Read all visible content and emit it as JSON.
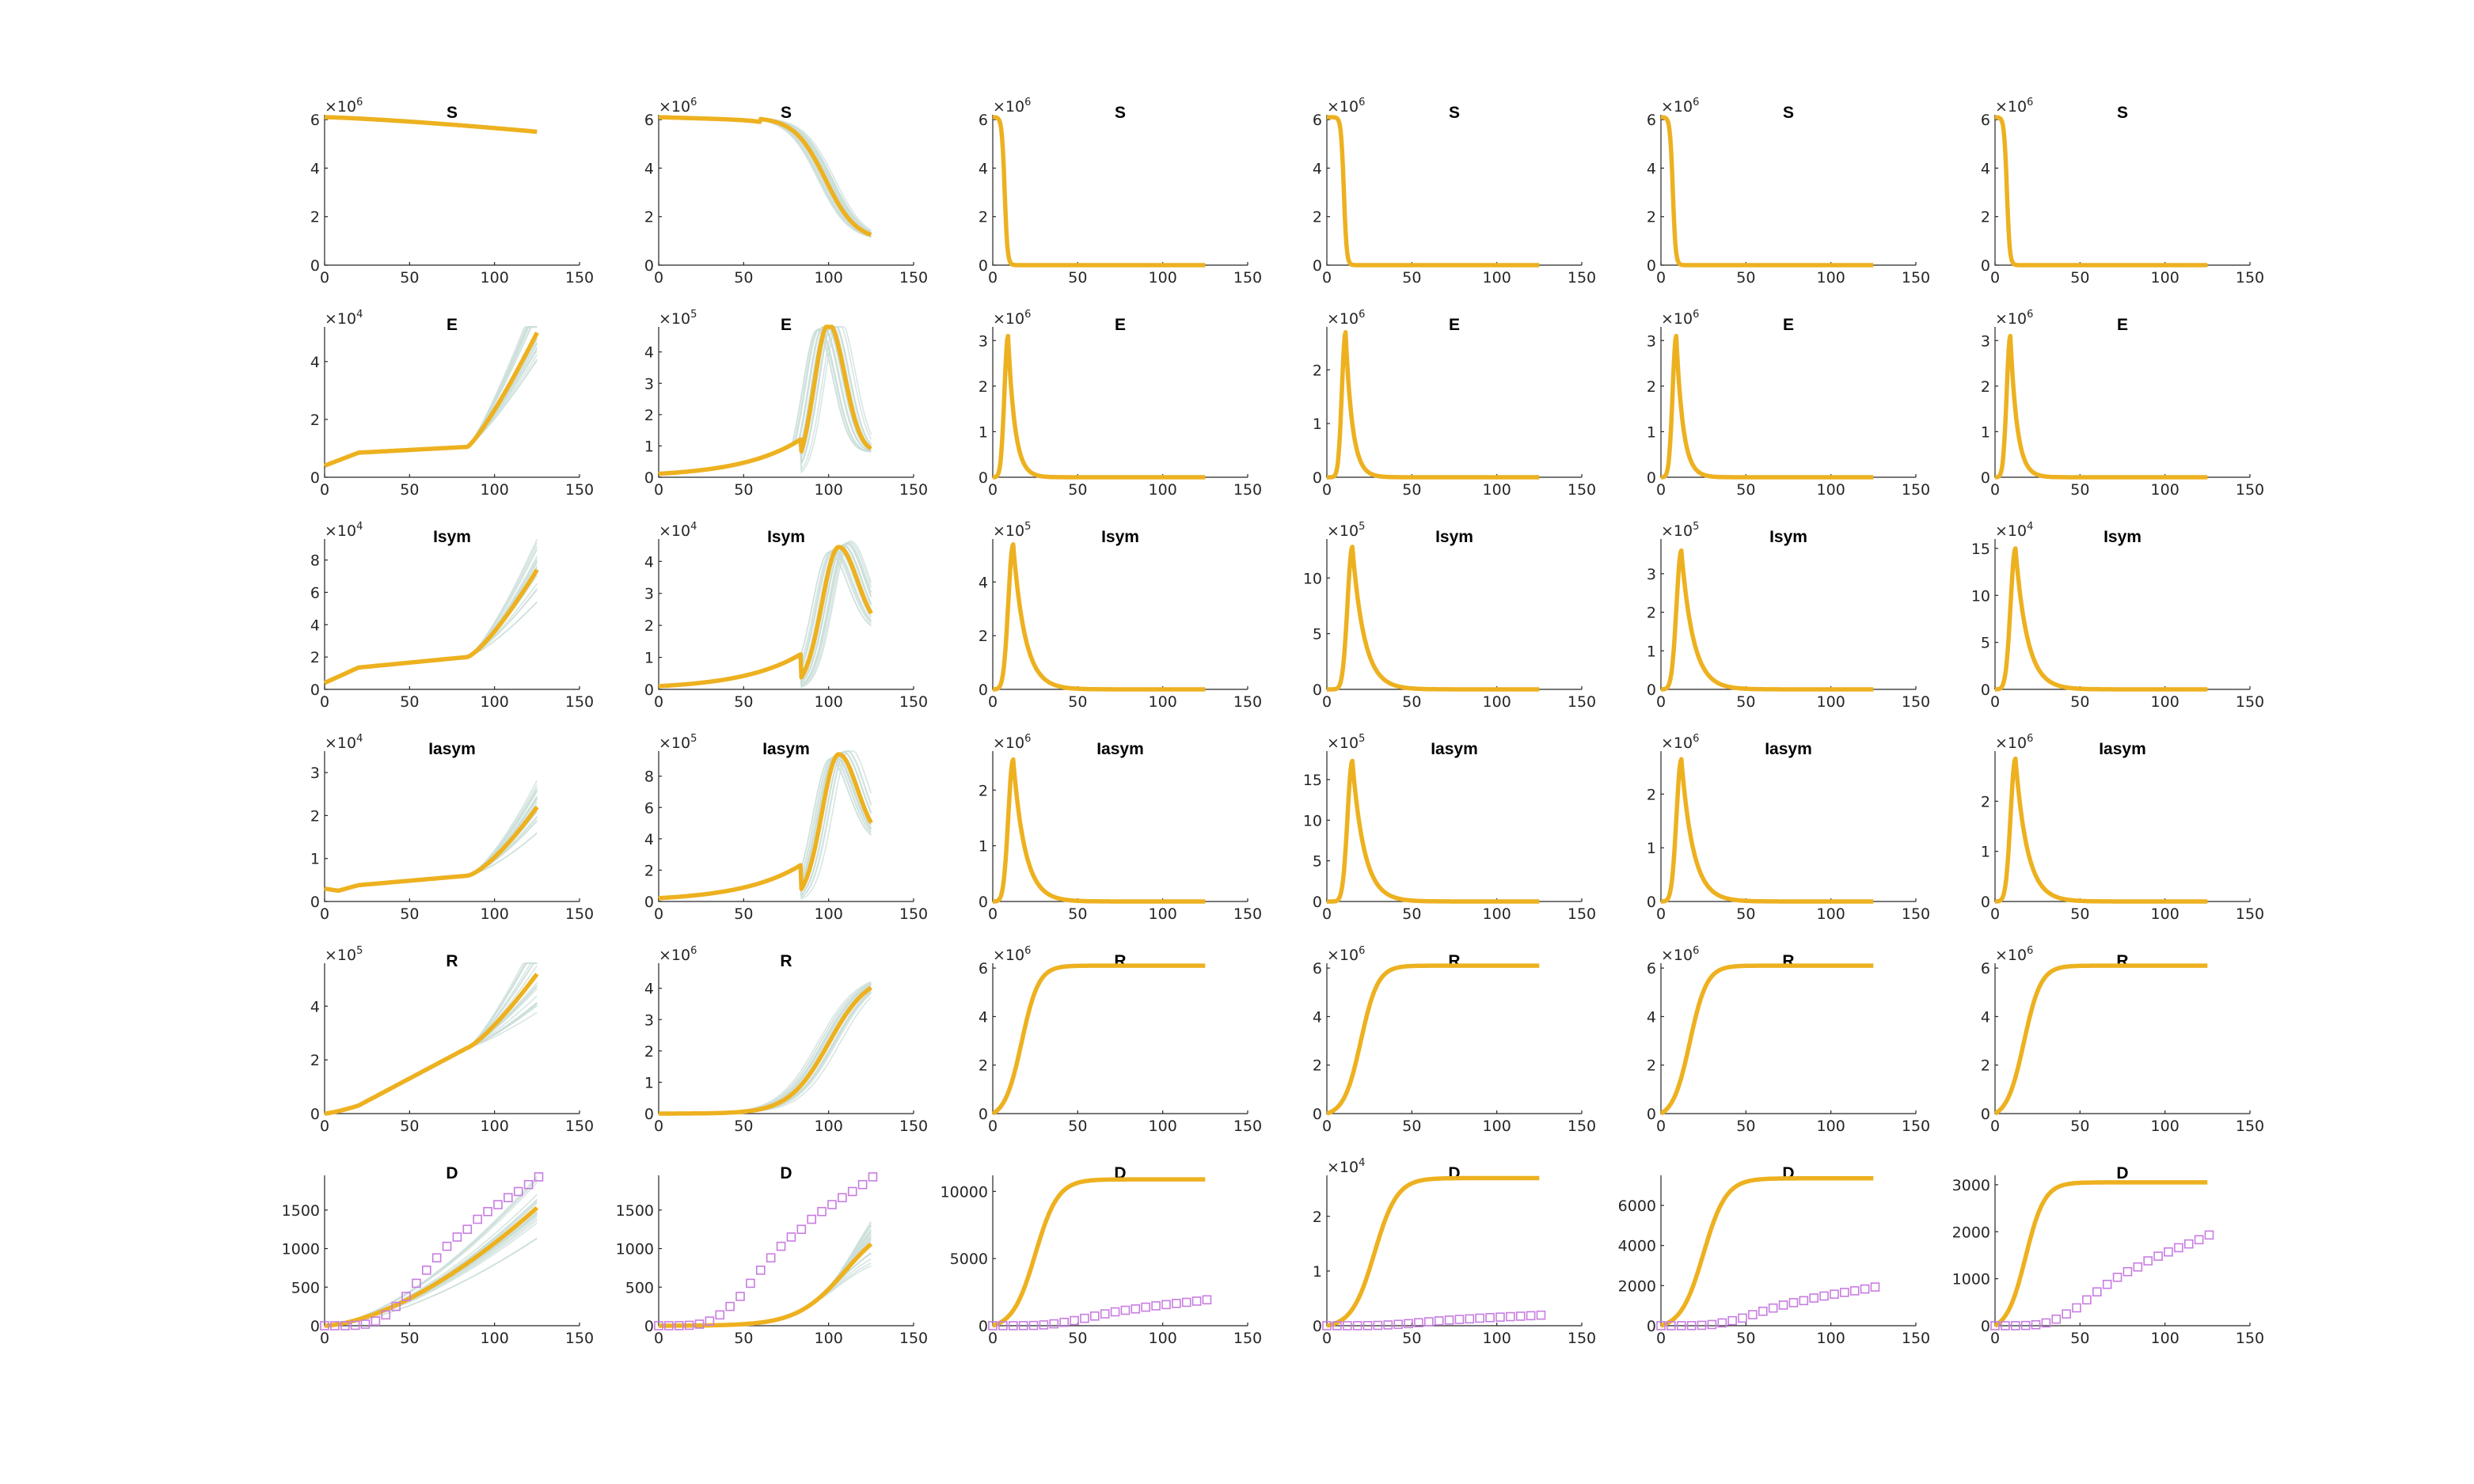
{
  "chart_data": {
    "type": "line",
    "layout": {
      "rows": 6,
      "cols": 6
    },
    "colors": {
      "main": "#EDB120",
      "ensemble": "#C9DED9",
      "observed": "#C77DE0",
      "axis": "#262626"
    },
    "xlim": [
      0,
      150
    ],
    "xticks": [
      0,
      50,
      100,
      150
    ],
    "variables": [
      {
        "key": "S",
        "title": "S"
      },
      {
        "key": "E",
        "title": "E"
      },
      {
        "key": "Isym",
        "title": "Isym"
      },
      {
        "key": "Iasym",
        "title": "Iasym"
      },
      {
        "key": "R",
        "title": "R"
      },
      {
        "key": "D",
        "title": "D"
      }
    ],
    "observed_deaths": {
      "x": [
        0,
        6,
        12,
        18,
        24,
        30,
        36,
        42,
        48,
        54,
        60,
        66,
        72,
        78,
        84,
        90,
        96,
        102,
        108,
        114,
        120,
        126
      ],
      "y": [
        0,
        0,
        0,
        5,
        20,
        60,
        140,
        250,
        380,
        550,
        720,
        880,
        1030,
        1150,
        1250,
        1380,
        1480,
        1570,
        1660,
        1740,
        1830,
        1930
      ]
    },
    "panels": [
      [
        {
          "exp": "6",
          "ylim": [
            0,
            6.2
          ],
          "yticks": [
            0,
            2,
            4,
            6
          ],
          "ytick_labels": [
            "0",
            "2",
            "4",
            "6"
          ],
          "shape": "s_slow",
          "peak": 6.1,
          "end": 5.5,
          "ens": 0
        },
        {
          "exp": "6",
          "ylim": [
            0,
            6.2
          ],
          "yticks": [
            0,
            2,
            4,
            6
          ],
          "ytick_labels": [
            "0",
            "2",
            "4",
            "6"
          ],
          "shape": "s_late",
          "peak": 6.1,
          "end": 1.0,
          "ens": 1
        },
        {
          "exp": "6",
          "ylim": [
            0,
            6.2
          ],
          "yticks": [
            0,
            2,
            4,
            6
          ],
          "ytick_labels": [
            "0",
            "2",
            "4",
            "6"
          ],
          "shape": "s_fast",
          "peak": 6.1,
          "center": 7,
          "ens": 0
        },
        {
          "exp": "6",
          "ylim": [
            0,
            6.2
          ],
          "yticks": [
            0,
            2,
            4,
            6
          ],
          "ytick_labels": [
            "0",
            "2",
            "4",
            "6"
          ],
          "shape": "s_fast",
          "peak": 6.1,
          "center": 10,
          "ens": 0
        },
        {
          "exp": "6",
          "ylim": [
            0,
            6.2
          ],
          "yticks": [
            0,
            2,
            4,
            6
          ],
          "ytick_labels": [
            "0",
            "2",
            "4",
            "6"
          ],
          "shape": "s_fast",
          "peak": 6.1,
          "center": 7,
          "ens": 0
        },
        {
          "exp": "6",
          "ylim": [
            0,
            6.2
          ],
          "yticks": [
            0,
            2,
            4,
            6
          ],
          "ytick_labels": [
            "0",
            "2",
            "4",
            "6"
          ],
          "shape": "s_fast",
          "peak": 6.1,
          "center": 7,
          "ens": 0
        }
      ],
      [
        {
          "exp": "4",
          "ylim": [
            0,
            5.2
          ],
          "yticks": [
            0,
            2,
            4
          ],
          "ytick_labels": [
            "0",
            "2",
            "4"
          ],
          "shape": "e_grow",
          "start": 0.4,
          "end": 5.0,
          "ens": 1
        },
        {
          "exp": "5",
          "ylim": [
            0,
            4.8
          ],
          "yticks": [
            0,
            1,
            2,
            3,
            4
          ],
          "ytick_labels": [
            "0",
            "1",
            "2",
            "3",
            "4"
          ],
          "shape": "late_peak",
          "peak": 4.9,
          "tpeak": 100,
          "end": 0.8,
          "width": 12,
          "ens": 1
        },
        {
          "exp": "6",
          "ylim": [
            0,
            3.3
          ],
          "yticks": [
            0,
            1,
            2,
            3
          ],
          "ytick_labels": [
            "0",
            "1",
            "2",
            "3"
          ],
          "shape": "spike",
          "peak": 3.1,
          "tpeak": 9,
          "rise": 3,
          "decay": 4,
          "ens": 0
        },
        {
          "exp": "6",
          "ylim": [
            0,
            2.8
          ],
          "yticks": [
            0,
            1,
            2
          ],
          "ytick_labels": [
            "0",
            "1",
            "2"
          ],
          "shape": "spike",
          "peak": 2.7,
          "tpeak": 11,
          "rise": 3,
          "decay": 4,
          "ens": 0
        },
        {
          "exp": "6",
          "ylim": [
            0,
            3.3
          ],
          "yticks": [
            0,
            1,
            2,
            3
          ],
          "ytick_labels": [
            "0",
            "1",
            "2",
            "3"
          ],
          "shape": "spike",
          "peak": 3.1,
          "tpeak": 9,
          "rise": 3,
          "decay": 4,
          "ens": 0
        },
        {
          "exp": "6",
          "ylim": [
            0,
            3.3
          ],
          "yticks": [
            0,
            1,
            2,
            3
          ],
          "ytick_labels": [
            "0",
            "1",
            "2",
            "3"
          ],
          "shape": "spike",
          "peak": 3.1,
          "tpeak": 9,
          "rise": 3,
          "decay": 4,
          "ens": 0
        }
      ],
      [
        {
          "exp": "4",
          "ylim": [
            0,
            9.3
          ],
          "yticks": [
            0,
            2,
            4,
            6,
            8
          ],
          "ytick_labels": [
            "0",
            "2",
            "4",
            "6",
            "8"
          ],
          "shape": "i_grow",
          "start": 0.4,
          "end": 7.4,
          "ens": 1
        },
        {
          "exp": "4",
          "ylim": [
            0,
            4.7
          ],
          "yticks": [
            0,
            1,
            2,
            3,
            4
          ],
          "ytick_labels": [
            "0",
            "1",
            "2",
            "3",
            "4"
          ],
          "shape": "late_peak",
          "peak": 4.45,
          "tpeak": 106,
          "end": 1.8,
          "width": 14,
          "ens": 1
        },
        {
          "exp": "5",
          "ylim": [
            0,
            5.6
          ],
          "yticks": [
            0,
            2,
            4
          ],
          "ytick_labels": [
            "0",
            "2",
            "4"
          ],
          "shape": "spike",
          "peak": 5.4,
          "tpeak": 12,
          "rise": 4,
          "decay": 7,
          "ens": 0
        },
        {
          "exp": "5",
          "ylim": [
            0,
            13.5
          ],
          "yticks": [
            0,
            5,
            10
          ],
          "ytick_labels": [
            "0",
            "5",
            "10"
          ],
          "shape": "spike",
          "peak": 12.8,
          "tpeak": 15,
          "rise": 4,
          "decay": 7,
          "ens": 0
        },
        {
          "exp": "5",
          "ylim": [
            0,
            3.9
          ],
          "yticks": [
            0,
            1,
            2,
            3
          ],
          "ytick_labels": [
            "0",
            "1",
            "2",
            "3"
          ],
          "shape": "spike",
          "peak": 3.6,
          "tpeak": 12,
          "rise": 4,
          "decay": 7,
          "ens": 0
        },
        {
          "exp": "4",
          "ylim": [
            0,
            16
          ],
          "yticks": [
            0,
            5,
            10,
            15
          ],
          "ytick_labels": [
            "0",
            "5",
            "10",
            "15"
          ],
          "shape": "spike",
          "peak": 15.0,
          "tpeak": 12,
          "rise": 4,
          "decay": 7,
          "ens": 0
        }
      ],
      [
        {
          "exp": "4",
          "ylim": [
            0,
            3.5
          ],
          "yticks": [
            0,
            1,
            2,
            3
          ],
          "ytick_labels": [
            "0",
            "1",
            "2",
            "3"
          ],
          "shape": "a_grow",
          "start": 0.3,
          "end": 2.2,
          "ens": 1
        },
        {
          "exp": "5",
          "ylim": [
            0,
            9.6
          ],
          "yticks": [
            0,
            2,
            4,
            6,
            8
          ],
          "ytick_labels": [
            "0",
            "2",
            "4",
            "6",
            "8"
          ],
          "shape": "late_peak",
          "peak": 9.4,
          "tpeak": 106,
          "end": 3.8,
          "width": 14,
          "ens": 1
        },
        {
          "exp": "6",
          "ylim": [
            0,
            2.7
          ],
          "yticks": [
            0,
            1,
            2
          ],
          "ytick_labels": [
            "0",
            "1",
            "2"
          ],
          "shape": "spike",
          "peak": 2.55,
          "tpeak": 12,
          "rise": 4,
          "decay": 7,
          "ens": 0
        },
        {
          "exp": "5",
          "ylim": [
            0,
            18.5
          ],
          "yticks": [
            0,
            5,
            10,
            15
          ],
          "ytick_labels": [
            "0",
            "5",
            "10",
            "15"
          ],
          "shape": "spike",
          "peak": 17.3,
          "tpeak": 15,
          "rise": 4,
          "decay": 7,
          "ens": 0
        },
        {
          "exp": "6",
          "ylim": [
            0,
            2.8
          ],
          "yticks": [
            0,
            1,
            2
          ],
          "ytick_labels": [
            "0",
            "1",
            "2"
          ],
          "shape": "spike",
          "peak": 2.65,
          "tpeak": 12,
          "rise": 4,
          "decay": 7,
          "ens": 0
        },
        {
          "exp": "6",
          "ylim": [
            0,
            3.0
          ],
          "yticks": [
            0,
            1,
            2
          ],
          "ytick_labels": [
            "0",
            "1",
            "2"
          ],
          "shape": "spike",
          "peak": 2.85,
          "tpeak": 12,
          "rise": 4,
          "decay": 7,
          "ens": 0
        }
      ],
      [
        {
          "exp": "5",
          "ylim": [
            0,
            5.6
          ],
          "yticks": [
            0,
            2,
            4
          ],
          "ytick_labels": [
            "0",
            "2",
            "4"
          ],
          "shape": "r_grow",
          "end": 5.2,
          "ens": 1
        },
        {
          "exp": "6",
          "ylim": [
            0,
            4.8
          ],
          "yticks": [
            0,
            1,
            2,
            3,
            4
          ],
          "ytick_labels": [
            "0",
            "1",
            "2",
            "3",
            "4"
          ],
          "shape": "r_late",
          "end": 4.5,
          "center": 100,
          "ens": 1
        },
        {
          "exp": "6",
          "ylim": [
            0,
            6.2
          ],
          "yticks": [
            0,
            2,
            4,
            6
          ],
          "ytick_labels": [
            "0",
            "2",
            "4",
            "6"
          ],
          "shape": "r_sig",
          "plateau": 6.1,
          "center": 17,
          "k": 0.2,
          "ens": 0
        },
        {
          "exp": "6",
          "ylim": [
            0,
            6.2
          ],
          "yticks": [
            0,
            2,
            4,
            6
          ],
          "ytick_labels": [
            "0",
            "2",
            "4",
            "6"
          ],
          "shape": "r_sig",
          "plateau": 6.1,
          "center": 20,
          "k": 0.2,
          "ens": 0
        },
        {
          "exp": "6",
          "ylim": [
            0,
            6.2
          ],
          "yticks": [
            0,
            2,
            4,
            6
          ],
          "ytick_labels": [
            "0",
            "2",
            "4",
            "6"
          ],
          "shape": "r_sig",
          "plateau": 6.1,
          "center": 17,
          "k": 0.2,
          "ens": 0
        },
        {
          "exp": "6",
          "ylim": [
            0,
            6.2
          ],
          "yticks": [
            0,
            2,
            4,
            6
          ],
          "ytick_labels": [
            "0",
            "2",
            "4",
            "6"
          ],
          "shape": "r_sig",
          "plateau": 6.1,
          "center": 17,
          "k": 0.2,
          "ens": 0
        }
      ],
      [
        {
          "exp": "",
          "ylim": [
            0,
            1950
          ],
          "yticks": [
            0,
            500,
            1000,
            1500
          ],
          "ytick_labels": [
            "0",
            "500",
            "1000",
            "1500"
          ],
          "shape": "d_grow",
          "end": 1530,
          "ens": 1,
          "obs": 1
        },
        {
          "exp": "",
          "ylim": [
            0,
            1950
          ],
          "yticks": [
            0,
            500,
            1000,
            1500
          ],
          "ytick_labels": [
            "0",
            "500",
            "1000",
            "1500"
          ],
          "shape": "d_late",
          "end": 1060,
          "ens": 1,
          "obs": 1
        },
        {
          "exp": "",
          "ylim": [
            0,
            11200
          ],
          "yticks": [
            0,
            5000,
            10000
          ],
          "ytick_labels": [
            "0",
            "5000",
            "10000"
          ],
          "shape": "r_sig",
          "plateau": 10900,
          "center": 25,
          "k": 0.15,
          "ens": 0,
          "obs": 1
        },
        {
          "exp": "4",
          "ylim": [
            0,
            2.75
          ],
          "yticks": [
            0,
            1,
            2
          ],
          "ytick_labels": [
            "0",
            "1",
            "2"
          ],
          "shape": "r_sig",
          "plateau": 2.7,
          "center": 28,
          "k": 0.15,
          "ens": 0,
          "obs": 1,
          "obs_scale": 0.0001
        },
        {
          "exp": "",
          "ylim": [
            0,
            7500
          ],
          "yticks": [
            0,
            2000,
            4000,
            6000
          ],
          "ytick_labels": [
            "0",
            "2000",
            "4000",
            "6000"
          ],
          "shape": "r_sig",
          "plateau": 7350,
          "center": 25,
          "k": 0.15,
          "ens": 0,
          "obs": 1
        },
        {
          "exp": "",
          "ylim": [
            0,
            3200
          ],
          "yticks": [
            0,
            1000,
            2000,
            3000
          ],
          "ytick_labels": [
            "0",
            "1000",
            "2000",
            "3000"
          ],
          "shape": "r_sig",
          "plateau": 3050,
          "center": 18,
          "k": 0.18,
          "ens": 0,
          "obs": 1
        }
      ]
    ]
  }
}
